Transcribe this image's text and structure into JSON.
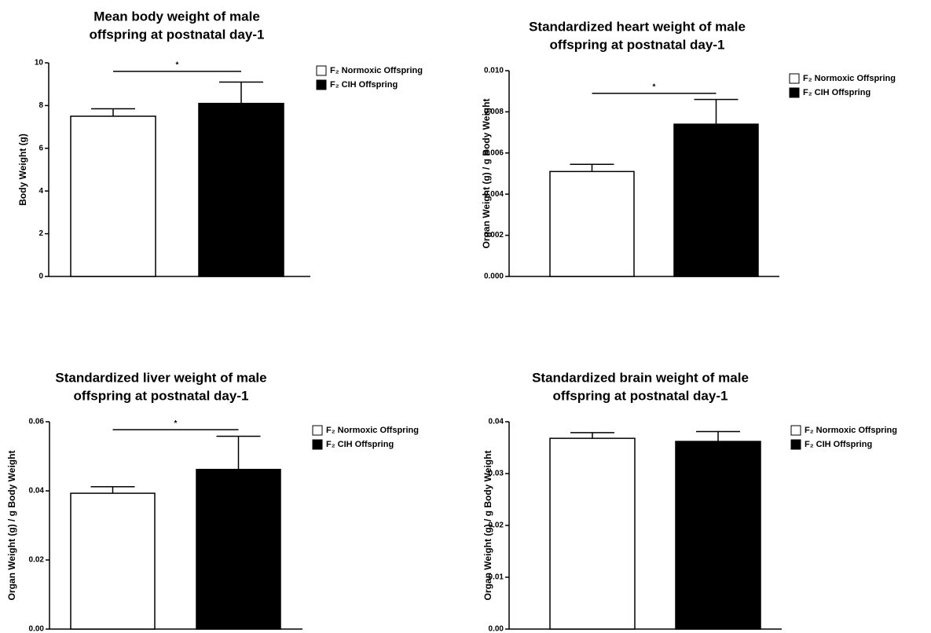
{
  "chart_data": [
    {
      "type": "bar",
      "title": [
        "Mean body weight of male",
        "offspring at postnatal day-1"
      ],
      "ylabel": "Body Weight (g)",
      "categories": [
        null
      ],
      "series": [
        {
          "name": "F₂ Normoxic Offspring",
          "color": "#ffffff",
          "values": [
            7.5
          ],
          "errors": [
            0.35
          ]
        },
        {
          "name": "F₂ CIH Offspring",
          "color": "#000000",
          "values": [
            8.1
          ],
          "errors": [
            1.0
          ]
        }
      ],
      "ylim": [
        0,
        10
      ],
      "yticks": [
        0,
        2,
        4,
        6,
        8,
        10
      ],
      "annotations": [
        {
          "text": "*",
          "y": 9.6
        }
      ]
    },
    {
      "type": "bar",
      "title": [
        "Standardized heart weight of male",
        "offspring at postnatal day-1"
      ],
      "ylabel": "Organ Weight (g) / g Body Weight",
      "categories": [
        null
      ],
      "series": [
        {
          "name": "F₂ Normoxic Offspring",
          "color": "#ffffff",
          "values": [
            0.0051
          ],
          "errors": [
            0.00035
          ]
        },
        {
          "name": "F₂ CIH Offspring",
          "color": "#000000",
          "values": [
            0.0074
          ],
          "errors": [
            0.0012
          ]
        }
      ],
      "ylim": [
        0,
        0.01
      ],
      "yticks": [
        {
          "value": 0,
          "label": "0.000"
        },
        {
          "value": 0.002,
          "label": "0.002"
        },
        {
          "value": 0.004,
          "label": "0.004"
        },
        {
          "value": 0.006,
          "label": "0.006"
        },
        {
          "value": 0.008,
          "label": "0.008"
        },
        {
          "value": 0.01,
          "label": "0.010"
        }
      ],
      "annotations": [
        {
          "text": "*",
          "y": 0.0089
        }
      ]
    },
    {
      "type": "bar",
      "title": [
        "Standardized liver weight of male",
        "offspring at postnatal day-1"
      ],
      "ylabel": "Organ Weight (g) / g Body Weight",
      "categories": [
        null
      ],
      "series": [
        {
          "name": "F₂ Normoxic Offspring",
          "color": "#ffffff",
          "values": [
            0.0393
          ],
          "errors": [
            0.0019
          ]
        },
        {
          "name": "F₂ CIH Offspring",
          "color": "#000000",
          "values": [
            0.0462
          ],
          "errors": [
            0.0096
          ]
        }
      ],
      "ylim": [
        0,
        0.06
      ],
      "yticks": [
        {
          "value": 0,
          "label": "0.00"
        },
        {
          "value": 0.02,
          "label": "0.02"
        },
        {
          "value": 0.04,
          "label": "0.04"
        },
        {
          "value": 0.06,
          "label": "0.06"
        }
      ],
      "annotations": [
        {
          "text": "*",
          "y": 0.0577
        }
      ]
    },
    {
      "type": "bar",
      "title": [
        "Standardized brain weight of male",
        "offspring at postnatal day-1"
      ],
      "ylabel": "Organ Weight (g) / g Body Weight",
      "categories": [
        null
      ],
      "series": [
        {
          "name": "F₂ Normoxic Offspring",
          "color": "#ffffff",
          "values": [
            0.0368
          ],
          "errors": [
            0.0011
          ]
        },
        {
          "name": "F₂ CIH Offspring",
          "color": "#000000",
          "values": [
            0.0362
          ],
          "errors": [
            0.0019
          ]
        }
      ],
      "ylim": [
        0,
        0.04
      ],
      "yticks": [
        {
          "value": 0,
          "label": "0.00"
        },
        {
          "value": 0.01,
          "label": "0.01"
        },
        {
          "value": 0.02,
          "label": "0.02"
        },
        {
          "value": 0.03,
          "label": "0.03"
        },
        {
          "value": 0.04,
          "label": "0.04"
        }
      ]
    }
  ]
}
